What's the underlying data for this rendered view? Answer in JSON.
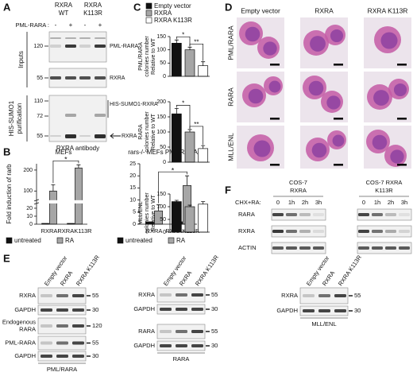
{
  "A": {
    "letter": "A",
    "columns": [
      [
        "RXRA",
        "WT"
      ],
      [
        "RXRA",
        "K113R"
      ]
    ],
    "row_label": "PML-RARA :",
    "signs": [
      "-",
      "+",
      "-",
      "+"
    ],
    "sections": [
      [
        "Inputs"
      ],
      [
        "HIS-SUMO1",
        "purification"
      ]
    ],
    "blots": [
      {
        "markers": [
          120
        ],
        "labels": [
          "PML-RARA"
        ]
      },
      {
        "markers": [
          55
        ],
        "labels": [
          "RXRA"
        ]
      },
      {
        "markers": [
          110,
          72,
          55
        ],
        "labels": [
          "HIS-SUMO1-RXRA",
          "RXRA"
        ]
      }
    ],
    "antibody": "RXRA antibody"
  },
  "B": {
    "letter": "B",
    "charts": [
      {
        "type": "bar",
        "title": "MEFs",
        "ylabel": "Fold induction of rarb",
        "categories": [
          "RXRA",
          "RXRAK113R"
        ],
        "series": [
          {
            "name": "untreated",
            "color": "#111111",
            "values": [
              1,
              1
            ]
          },
          {
            "name": "RA",
            "color": "#a6a6a6",
            "values": [
              100,
              210
            ],
            "errors": [
              30,
              15
            ]
          }
        ],
        "ylim": [
          0,
          230
        ],
        "axis_break": [
          25,
          60
        ],
        "yticks": [
          0,
          10,
          20,
          100,
          200
        ],
        "annotations": [
          "*"
        ]
      },
      {
        "type": "bar",
        "title": "rars-/- MEFs PML/RARA",
        "categories": [
          "RXRA",
          "RXRAK113R"
        ],
        "series": [
          {
            "name": "untreated",
            "color": "#111111",
            "values": [
              1,
              1
            ]
          },
          {
            "name": "RA",
            "color": "#a6a6a6",
            "values": [
              5.5,
              16
            ],
            "errors": [
              2.5,
              4
            ]
          }
        ],
        "ylim": [
          0,
          25
        ],
        "yticks": [
          0,
          5,
          10,
          15,
          20,
          25
        ],
        "annotations": [
          "*"
        ]
      }
    ]
  },
  "C": {
    "letter": "C",
    "legend": [
      {
        "name": "Empty vector",
        "color": "#111111"
      },
      {
        "name": "RXRA",
        "color": "#a6a6a6"
      },
      {
        "name": "RXRA K113R",
        "color": "#ffffff"
      }
    ],
    "charts": [
      {
        "type": "bar",
        "ylabel": [
          "PML/RARA",
          "colonies number",
          "Relative to WT"
        ],
        "values": [
          125,
          100,
          40
        ],
        "errors": [
          12,
          10,
          15
        ],
        "ylim": [
          0,
          150
        ],
        "yticks": [
          0,
          50,
          100,
          150
        ],
        "annotations": [
          "*",
          "**"
        ]
      },
      {
        "type": "bar",
        "ylabel": [
          "RARA",
          "colonies number",
          "Relative to WT"
        ],
        "values": [
          160,
          100,
          45
        ],
        "errors": [
          18,
          8,
          10
        ],
        "ylim": [
          0,
          200
        ],
        "yticks": [
          0,
          50,
          100,
          150,
          200
        ],
        "annotations": [
          "*",
          "**"
        ]
      },
      {
        "type": "bar",
        "ylabel": [
          "MLL/ENL",
          "colonies number",
          "Relative to WT"
        ],
        "values": [
          120,
          100,
          110
        ],
        "errors": [
          5,
          6,
          10
        ],
        "ylim": [
          0,
          150
        ],
        "yticks": [
          0,
          50,
          100,
          150
        ]
      }
    ]
  },
  "D": {
    "letter": "D",
    "columns": [
      "Empty vector",
      "RXRA",
      "RXRA K113R"
    ],
    "rows": [
      "PML/RARA",
      "RARA",
      "MLL/ENL"
    ]
  },
  "E": {
    "letter": "E",
    "groups": [
      {
        "columns": [
          "Empty vector",
          "RXRA",
          "RXRA K113R"
        ],
        "rows": [
          {
            "label": [
              "RXRA"
            ],
            "marker": 55
          },
          {
            "label": [
              "GAPDH"
            ],
            "marker": 30
          },
          {
            "label": [
              "Endogenous",
              "RARA"
            ],
            "marker": 120
          },
          {
            "label": [
              "PML-RARA"
            ],
            "marker": 55
          },
          {
            "label": [
              "GAPDH"
            ],
            "marker": 30
          }
        ],
        "footer": "PML/RARA"
      },
      {
        "columns": [
          "Empty vector",
          "RXRA",
          "RXRA K113R"
        ],
        "rows": [
          {
            "label": [
              "RXRA"
            ],
            "marker": 55
          },
          {
            "label": [
              "GAPDH"
            ],
            "marker": 30
          },
          {
            "label": [
              "RARA"
            ],
            "marker": 55
          },
          {
            "label": [
              "GAPDH"
            ],
            "marker": 30
          }
        ],
        "footer": "RARA"
      },
      {
        "columns": [
          "Empty vector",
          "RXRA",
          "RXRA K113R"
        ],
        "rows": [
          {
            "label": [
              "RXRA"
            ],
            "marker": 55
          },
          {
            "label": [
              "GAPDH"
            ],
            "marker": 30
          }
        ],
        "footer": "MLL/ENL"
      }
    ]
  },
  "F": {
    "letter": "F",
    "treatment": "CHX+RA:",
    "lines": [
      {
        "name": [
          "COS-7",
          "RXRA"
        ],
        "times": [
          "0",
          "1h",
          "2h",
          "3h"
        ]
      },
      {
        "name": [
          "COS-7 RXRA",
          "K113R"
        ],
        "times": [
          "0",
          "1h",
          "2h",
          "3h"
        ]
      }
    ],
    "rows": [
      "RARA",
      "RXRA",
      "ACTIN"
    ]
  }
}
